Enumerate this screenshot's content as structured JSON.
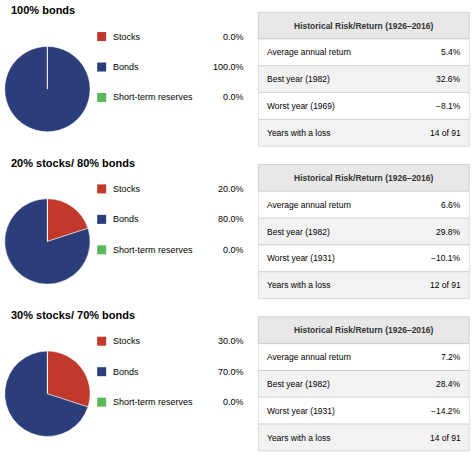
{
  "chart_data": [
    {
      "type": "pie",
      "title": "100% bonds",
      "categories": [
        "Stocks",
        "Bonds",
        "Short-term reserves"
      ],
      "values": [
        0.001,
        100.0,
        0.0
      ],
      "value_labels": [
        "0.0%",
        "100.0%",
        "0.0%"
      ],
      "colors": [
        "#c0392b",
        "#2c3e7a",
        "#5cb85c"
      ],
      "table": {
        "title": "Historical Risk/Return (1926–2016)",
        "rows": [
          [
            "Average annual return",
            "5.4%"
          ],
          [
            "Best year (1982)",
            "32.6%"
          ],
          [
            "Worst year (1969)",
            "−8.1%"
          ],
          [
            "Years with a loss",
            "14 of 91"
          ]
        ]
      }
    },
    {
      "type": "pie",
      "title": "20% stocks/ 80% bonds",
      "categories": [
        "Stocks",
        "Bonds",
        "Short-term reserves"
      ],
      "values": [
        20.0,
        80.0,
        0.0
      ],
      "value_labels": [
        "20.0%",
        "80.0%",
        "0.0%"
      ],
      "colors": [
        "#c0392b",
        "#2c3e7a",
        "#5cb85c"
      ],
      "table": {
        "title": "Historical Risk/Return (1926–2016)",
        "rows": [
          [
            "Average annual return",
            "6.6%"
          ],
          [
            "Best year (1982)",
            "29.8%"
          ],
          [
            "Worst year (1931)",
            "−10.1%"
          ],
          [
            "Years with a loss",
            "12 of 91"
          ]
        ]
      }
    },
    {
      "type": "pie",
      "title": "30% stocks/ 70% bonds",
      "categories": [
        "Stocks",
        "Bonds",
        "Short-term reserves"
      ],
      "values": [
        30.0,
        70.0,
        0.0
      ],
      "value_labels": [
        "30.0%",
        "70.0%",
        "0.0%"
      ],
      "colors": [
        "#c0392b",
        "#2c3e7a",
        "#5cb85c"
      ],
      "table": {
        "title": "Historical Risk/Return (1926–2016)",
        "rows": [
          [
            "Average annual return",
            "7.2%"
          ],
          [
            "Best year (1982)",
            "28.4%"
          ],
          [
            "Worst year (1931)",
            "−14.2%"
          ],
          [
            "Years with a loss",
            "14 of 91"
          ]
        ]
      }
    }
  ]
}
